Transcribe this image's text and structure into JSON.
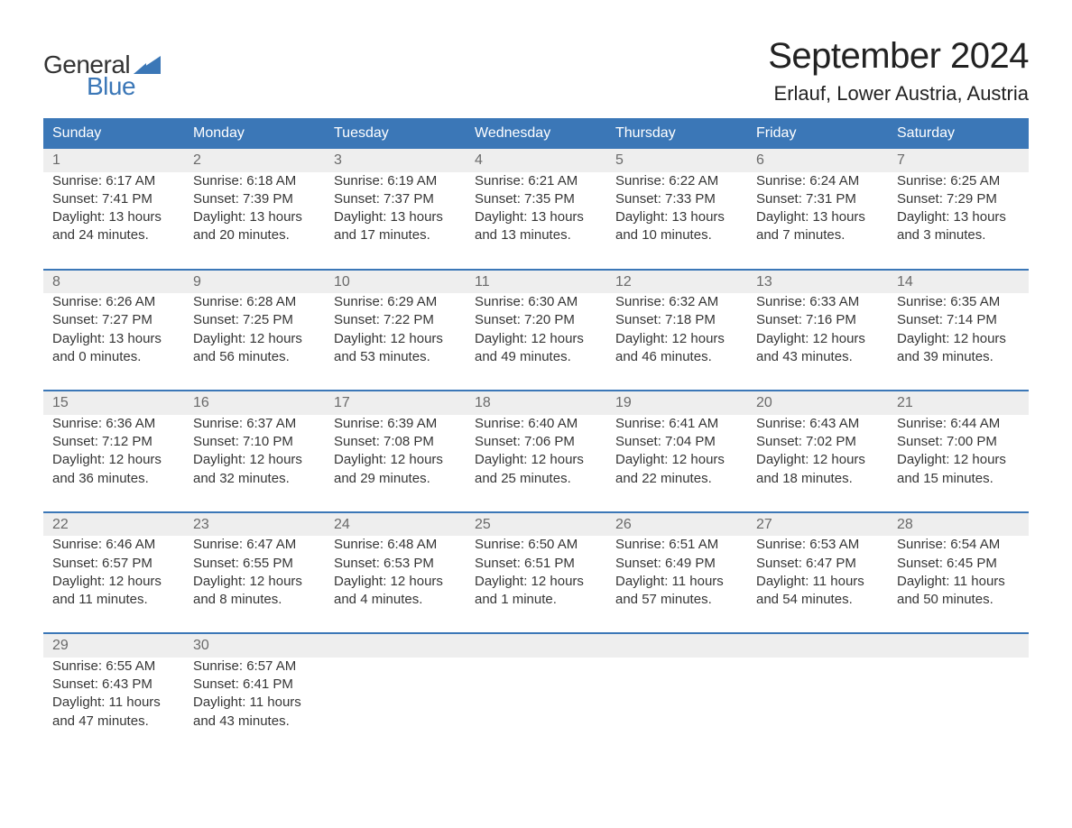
{
  "brand": {
    "part1": "General",
    "part2": "Blue",
    "accent_color": "#3b77b7"
  },
  "title": "September 2024",
  "location": "Erlauf, Lower Austria, Austria",
  "colors": {
    "accent": "#3b77b7",
    "header_row_bg": "#eeeeee",
    "text": "#363636",
    "background": "#ffffff"
  },
  "typography": {
    "title_fontsize_pt": 30,
    "location_fontsize_pt": 16,
    "header_fontsize_pt": 12,
    "body_fontsize_pt": 11,
    "font_family": "Arial"
  },
  "day_headers": [
    "Sunday",
    "Monday",
    "Tuesday",
    "Wednesday",
    "Thursday",
    "Friday",
    "Saturday"
  ],
  "weeks": [
    [
      {
        "day": 1,
        "sunrise": "6:17 AM",
        "sunset": "7:41 PM",
        "daylight": "13 hours and 24 minutes."
      },
      {
        "day": 2,
        "sunrise": "6:18 AM",
        "sunset": "7:39 PM",
        "daylight": "13 hours and 20 minutes."
      },
      {
        "day": 3,
        "sunrise": "6:19 AM",
        "sunset": "7:37 PM",
        "daylight": "13 hours and 17 minutes."
      },
      {
        "day": 4,
        "sunrise": "6:21 AM",
        "sunset": "7:35 PM",
        "daylight": "13 hours and 13 minutes."
      },
      {
        "day": 5,
        "sunrise": "6:22 AM",
        "sunset": "7:33 PM",
        "daylight": "13 hours and 10 minutes."
      },
      {
        "day": 6,
        "sunrise": "6:24 AM",
        "sunset": "7:31 PM",
        "daylight": "13 hours and 7 minutes."
      },
      {
        "day": 7,
        "sunrise": "6:25 AM",
        "sunset": "7:29 PM",
        "daylight": "13 hours and 3 minutes."
      }
    ],
    [
      {
        "day": 8,
        "sunrise": "6:26 AM",
        "sunset": "7:27 PM",
        "daylight": "13 hours and 0 minutes."
      },
      {
        "day": 9,
        "sunrise": "6:28 AM",
        "sunset": "7:25 PM",
        "daylight": "12 hours and 56 minutes."
      },
      {
        "day": 10,
        "sunrise": "6:29 AM",
        "sunset": "7:22 PM",
        "daylight": "12 hours and 53 minutes."
      },
      {
        "day": 11,
        "sunrise": "6:30 AM",
        "sunset": "7:20 PM",
        "daylight": "12 hours and 49 minutes."
      },
      {
        "day": 12,
        "sunrise": "6:32 AM",
        "sunset": "7:18 PM",
        "daylight": "12 hours and 46 minutes."
      },
      {
        "day": 13,
        "sunrise": "6:33 AM",
        "sunset": "7:16 PM",
        "daylight": "12 hours and 43 minutes."
      },
      {
        "day": 14,
        "sunrise": "6:35 AM",
        "sunset": "7:14 PM",
        "daylight": "12 hours and 39 minutes."
      }
    ],
    [
      {
        "day": 15,
        "sunrise": "6:36 AM",
        "sunset": "7:12 PM",
        "daylight": "12 hours and 36 minutes."
      },
      {
        "day": 16,
        "sunrise": "6:37 AM",
        "sunset": "7:10 PM",
        "daylight": "12 hours and 32 minutes."
      },
      {
        "day": 17,
        "sunrise": "6:39 AM",
        "sunset": "7:08 PM",
        "daylight": "12 hours and 29 minutes."
      },
      {
        "day": 18,
        "sunrise": "6:40 AM",
        "sunset": "7:06 PM",
        "daylight": "12 hours and 25 minutes."
      },
      {
        "day": 19,
        "sunrise": "6:41 AM",
        "sunset": "7:04 PM",
        "daylight": "12 hours and 22 minutes."
      },
      {
        "day": 20,
        "sunrise": "6:43 AM",
        "sunset": "7:02 PM",
        "daylight": "12 hours and 18 minutes."
      },
      {
        "day": 21,
        "sunrise": "6:44 AM",
        "sunset": "7:00 PM",
        "daylight": "12 hours and 15 minutes."
      }
    ],
    [
      {
        "day": 22,
        "sunrise": "6:46 AM",
        "sunset": "6:57 PM",
        "daylight": "12 hours and 11 minutes."
      },
      {
        "day": 23,
        "sunrise": "6:47 AM",
        "sunset": "6:55 PM",
        "daylight": "12 hours and 8 minutes."
      },
      {
        "day": 24,
        "sunrise": "6:48 AM",
        "sunset": "6:53 PM",
        "daylight": "12 hours and 4 minutes."
      },
      {
        "day": 25,
        "sunrise": "6:50 AM",
        "sunset": "6:51 PM",
        "daylight": "12 hours and 1 minute."
      },
      {
        "day": 26,
        "sunrise": "6:51 AM",
        "sunset": "6:49 PM",
        "daylight": "11 hours and 57 minutes."
      },
      {
        "day": 27,
        "sunrise": "6:53 AM",
        "sunset": "6:47 PM",
        "daylight": "11 hours and 54 minutes."
      },
      {
        "day": 28,
        "sunrise": "6:54 AM",
        "sunset": "6:45 PM",
        "daylight": "11 hours and 50 minutes."
      }
    ],
    [
      {
        "day": 29,
        "sunrise": "6:55 AM",
        "sunset": "6:43 PM",
        "daylight": "11 hours and 47 minutes."
      },
      {
        "day": 30,
        "sunrise": "6:57 AM",
        "sunset": "6:41 PM",
        "daylight": "11 hours and 43 minutes."
      },
      null,
      null,
      null,
      null,
      null
    ]
  ],
  "labels": {
    "sunrise_prefix": "Sunrise: ",
    "sunset_prefix": "Sunset: ",
    "daylight_prefix": "Daylight: "
  }
}
